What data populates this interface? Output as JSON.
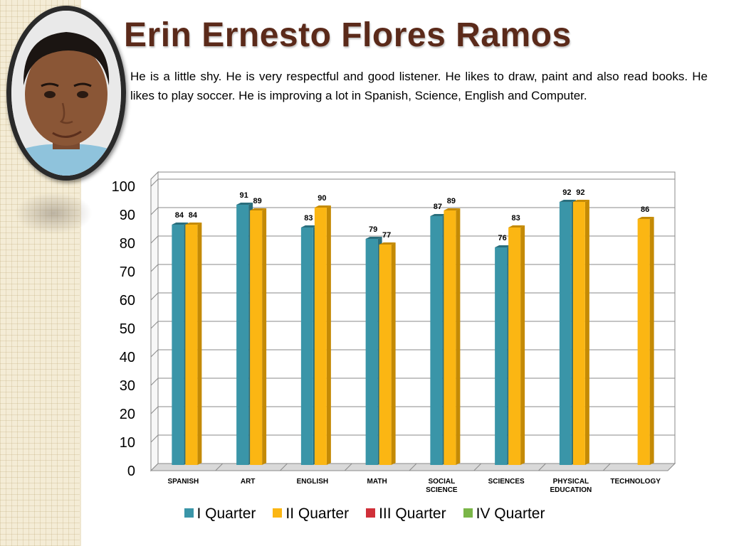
{
  "slide": {
    "title": "Erin Ernesto Flores Ramos",
    "description": "He is  a little  shy.  He is very respectful  and good listener. He likes to draw, paint and also read books.  He  likes to play soccer.  He is improving a lot in Spanish, Science, English and Computer."
  },
  "colors": {
    "title": "#5b2a1a",
    "series": [
      "#3a95a8",
      "#fbb613",
      "#d03039",
      "#7ab648"
    ],
    "series_shade": [
      "#2a6e7c",
      "#c48a05",
      "#9a2028",
      "#5a8a32"
    ]
  },
  "chart_data": {
    "type": "bar",
    "categories": [
      "SPANISH",
      "ART",
      "ENGLISH",
      "MATH",
      "SOCIAL SCIENCE",
      "SCIENCES",
      "PHYSICAL EDUCATION",
      "TECHNOLOGY"
    ],
    "category_lines": [
      [
        "SPANISH"
      ],
      [
        "ART"
      ],
      [
        "ENGLISH"
      ],
      [
        "MATH"
      ],
      [
        "SOCIAL",
        "SCIENCE"
      ],
      [
        "SCIENCES"
      ],
      [
        "PHYSICAL",
        "EDUCATION"
      ],
      [
        "TECHNOLOGY"
      ]
    ],
    "series": [
      {
        "name": "I Quarter",
        "values": [
          84,
          91,
          83,
          79,
          87,
          76,
          92,
          null
        ]
      },
      {
        "name": "II Quarter",
        "values": [
          84,
          89,
          90,
          77,
          89,
          83,
          92,
          86
        ]
      },
      {
        "name": "III Quarter",
        "values": [
          null,
          null,
          null,
          null,
          null,
          null,
          null,
          null
        ]
      },
      {
        "name": "IV Quarter",
        "values": [
          null,
          null,
          null,
          null,
          null,
          null,
          null,
          null
        ]
      }
    ],
    "ylim": [
      0,
      100
    ],
    "yticks": [
      0,
      10,
      20,
      30,
      40,
      50,
      60,
      70,
      80,
      90,
      100
    ],
    "grid": true,
    "legend_position": "bottom",
    "data_labels": true
  }
}
